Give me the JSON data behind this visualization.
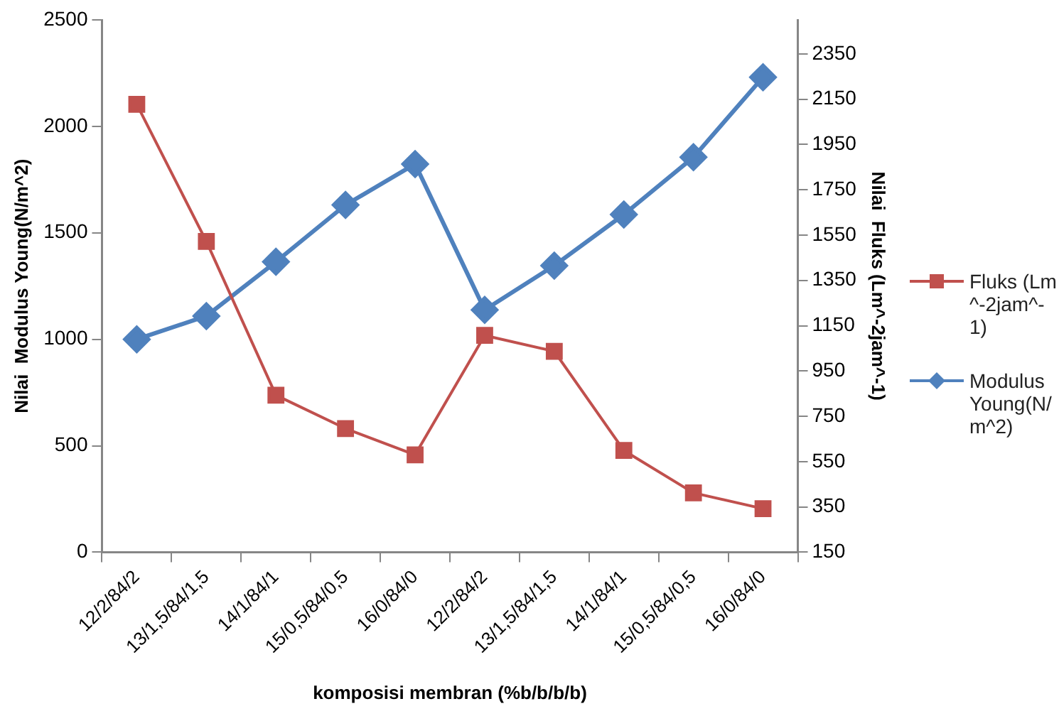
{
  "chart_data": {
    "type": "line",
    "xlabel": "komposisi membran (%b/b/b/b)",
    "ylabel": "Nilai  Modulus Young(N/m^2)",
    "y2label": "Nilai  Fluks (Lm^-2jam^-1)",
    "categories": [
      "12/2/84/2",
      "13/1,5/84/1,5",
      "14/1/84/1",
      "15/0,5/84/0,5",
      "16/0/84/0",
      "12/2/84/2",
      "13/1,5/84/1,5",
      "14/1/84/1",
      "15/0,5/84/0,5",
      "16/0/84/0"
    ],
    "series": [
      {
        "name": "Fluks (Lm^-2jam^-1)",
        "color": "#c0504d",
        "axis": "y2",
        "marker": "square",
        "values": [
          2127,
          1522,
          843,
          696,
          580,
          1107,
          1037,
          599,
          412,
          342
        ]
      },
      {
        "name": "Modulus Young(N/m^2)",
        "color": "#4f81bd",
        "axis": "y",
        "marker": "diamond",
        "values": [
          1000,
          1109,
          1364,
          1631,
          1823,
          1138,
          1346,
          1586,
          1855,
          2231
        ]
      }
    ],
    "ylim": [
      0,
      2500
    ],
    "yticks": [
      0,
      500,
      1000,
      1500,
      2000,
      2500
    ],
    "y2lim": [
      150,
      2500
    ],
    "y2ticks": [
      150,
      350,
      550,
      750,
      950,
      1150,
      1350,
      1550,
      1750,
      1950,
      2150,
      2350
    ],
    "grid": false,
    "legend": "right"
  }
}
